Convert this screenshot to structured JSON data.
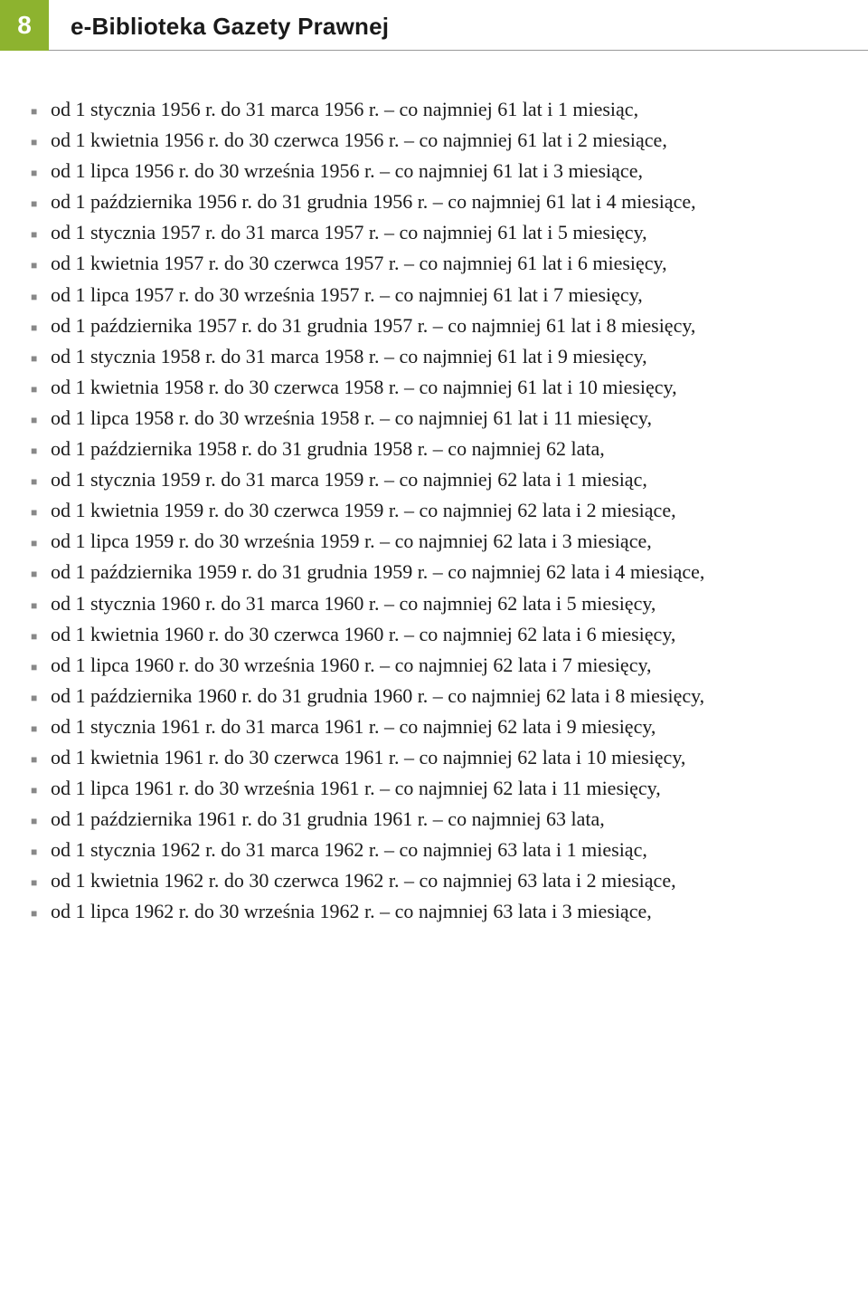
{
  "header": {
    "page_number": "8",
    "title": "e-Biblioteka Gazety Prawnej"
  },
  "lines": [
    {
      "bullet": true,
      "text": "od 1 stycznia 1956 r. do 31 marca 1956 r. – co najmniej 61 lat i 1 miesiąc,"
    },
    {
      "bullet": true,
      "text": "od 1 kwietnia 1956 r. do 30 czerwca 1956 r. – co najmniej 61 lat i 2 miesiące,"
    },
    {
      "bullet": true,
      "text": "od 1 lipca 1956 r. do 30 września 1956 r. – co najmniej 61 lat i 3 miesiące,"
    },
    {
      "bullet": true,
      "text": "od 1 października 1956 r. do 31 grudnia 1956 r. – co najmniej 61 lat i 4 miesiące,"
    },
    {
      "bullet": true,
      "text": "od 1 stycznia 1957 r. do 31 marca 1957 r. – co najmniej 61 lat i 5 miesięcy,"
    },
    {
      "bullet": true,
      "text": "od 1 kwietnia 1957 r. do 30 czerwca 1957 r. – co najmniej 61 lat i 6 miesięcy,"
    },
    {
      "bullet": true,
      "text": "od 1 lipca 1957 r. do 30 września 1957 r. – co najmniej 61 lat i 7 miesięcy,"
    },
    {
      "bullet": true,
      "text": "od 1 października 1957 r. do 31 grudnia 1957 r. – co najmniej 61 lat i 8 miesięcy,"
    },
    {
      "bullet": true,
      "text": "od 1 stycznia 1958 r. do 31 marca 1958 r. – co najmniej 61 lat i 9 miesięcy,"
    },
    {
      "bullet": true,
      "text": "od 1 kwietnia 1958 r. do 30 czerwca 1958 r. – co najmniej 61 lat i 10 miesięcy,"
    },
    {
      "bullet": true,
      "text": "od 1 lipca 1958 r. do 30 września 1958 r. – co najmniej 61 lat i 11 miesięcy,"
    },
    {
      "bullet": true,
      "text": "od 1 października 1958 r. do 31 grudnia 1958 r. – co najmniej 62 lata,"
    },
    {
      "bullet": true,
      "text": "od 1 stycznia 1959 r. do 31 marca 1959 r. – co najmniej 62 lata i 1 miesiąc,"
    },
    {
      "bullet": true,
      "text": "od 1 kwietnia 1959 r. do 30 czerwca 1959 r. – co najmniej 62 lata i 2 miesiące,"
    },
    {
      "bullet": true,
      "text": "od 1 lipca 1959 r. do 30 września 1959 r. – co najmniej 62 lata i 3 miesiące,"
    },
    {
      "bullet": true,
      "text": "od 1 października 1959 r. do 31 grudnia 1959 r. – co najmniej 62 lata i 4 miesiące,"
    },
    {
      "bullet": true,
      "text": "od 1 stycznia 1960 r. do 31 marca 1960 r. – co najmniej 62 lata i 5 miesięcy,"
    },
    {
      "bullet": true,
      "text": "od 1 kwietnia 1960 r. do 30 czerwca 1960 r. – co najmniej 62 lata i 6 miesięcy,"
    },
    {
      "bullet": true,
      "text": "od 1 lipca 1960 r. do 30 września 1960 r. – co najmniej 62 lata i 7 miesięcy,"
    },
    {
      "bullet": true,
      "text": "od 1 października 1960 r. do 31 grudnia 1960 r. – co najmniej 62 lata i 8 miesięcy,"
    },
    {
      "bullet": true,
      "text": "od 1 stycznia 1961 r. do 31 marca 1961 r. – co najmniej 62 lata i 9 miesięcy,"
    },
    {
      "bullet": true,
      "text": "od 1 kwietnia 1961 r. do 30 czerwca 1961 r. – co najmniej 62 lata i 10 miesięcy,"
    },
    {
      "bullet": true,
      "text": "od 1 lipca 1961 r. do 30 września 1961 r. – co najmniej 62 lata i 11 miesięcy,"
    },
    {
      "bullet": true,
      "text": "od 1 października 1961 r. do 31 grudnia 1961 r. – co najmniej 63 lata,"
    },
    {
      "bullet": true,
      "text": "od 1 stycznia 1962 r. do 31 marca 1962 r. – co najmniej 63 lata i 1 miesiąc,"
    },
    {
      "bullet": true,
      "text": "od 1 kwietnia 1962 r. do 30 czerwca 1962 r. – co najmniej 63 lata i 2 miesiące,"
    },
    {
      "bullet": true,
      "text": "od 1 lipca 1962 r. do 30 września 1962 r. – co najmniej 63 lata i 3 miesiące,"
    }
  ],
  "colors": {
    "accent": "#8db32f",
    "bullet": "#888888",
    "text": "#1a1a1a",
    "divider": "#999999"
  }
}
